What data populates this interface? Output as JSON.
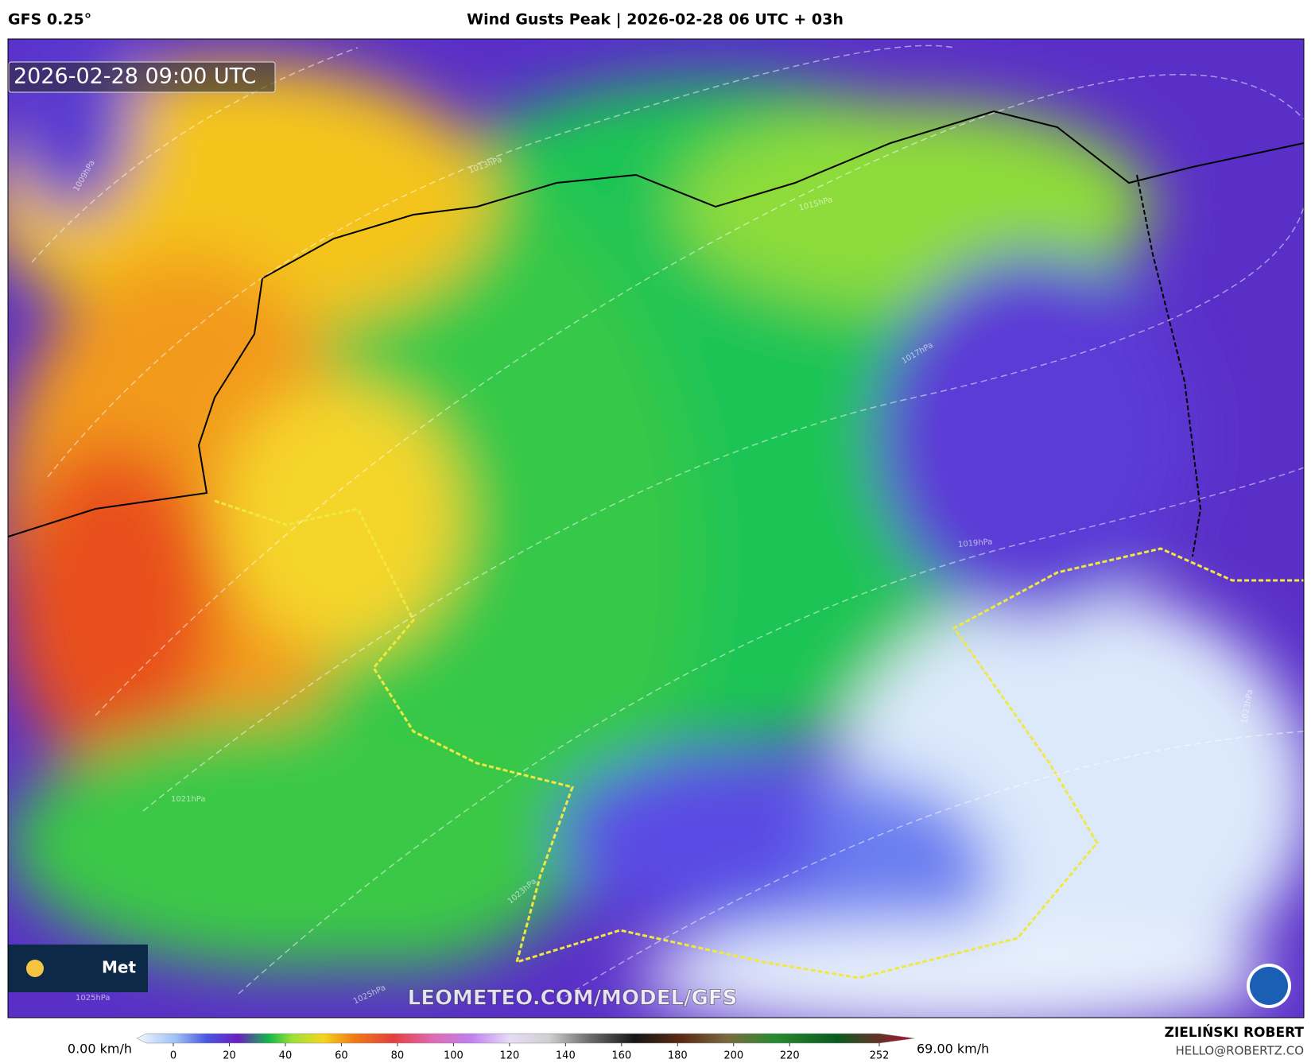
{
  "header": {
    "model": "GFS 0.25°",
    "title": "Wind Gusts Peak | 2026-02-28 06 UTC + 03h"
  },
  "map": {
    "timestamp": "2026-02-28 09:00 UTC",
    "watermark": "LEOMETEO.COM/MODEL/GFS",
    "logo_text": "Met",
    "isobars": [
      "1009hPa",
      "1013hPa",
      "1015hPa",
      "1017hPa",
      "1019hPa",
      "1021hPa",
      "1023hPa",
      "1023hPa",
      "1025hPa",
      "1025hPa"
    ]
  },
  "colorbar": {
    "min_label": "0.00 km/h",
    "max_label": "69.00 km/h",
    "ticks": [
      0,
      20,
      40,
      60,
      80,
      100,
      120,
      140,
      160,
      180,
      200,
      220,
      252
    ]
  },
  "credits": {
    "name": "ZIELIŃSKI ROBERT",
    "email": "HELLO@ROBERTZ.CO"
  }
}
